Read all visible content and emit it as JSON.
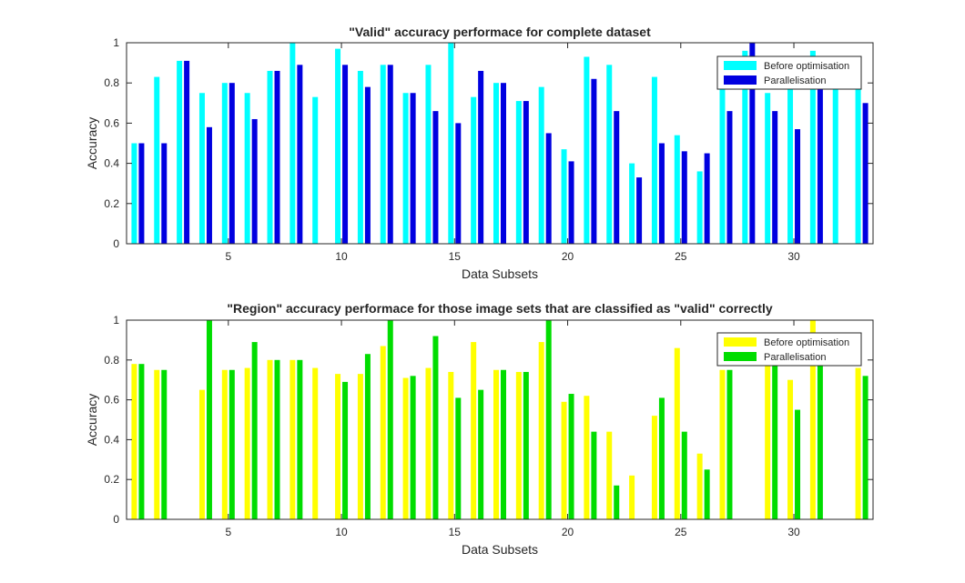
{
  "chart_data": [
    {
      "type": "bar",
      "title": "\"Valid\" accuracy performace for complete dataset",
      "xlabel": "Data Subsets",
      "ylabel": "Accuracy",
      "xlim": [
        0.5,
        33.5
      ],
      "ylim": [
        0,
        1
      ],
      "xticks": [
        5,
        10,
        15,
        20,
        25,
        30
      ],
      "yticks": [
        0,
        0.2,
        0.4,
        0.6,
        0.8,
        1
      ],
      "legend_position": "top-right",
      "categories": [
        1,
        2,
        3,
        4,
        5,
        6,
        7,
        8,
        9,
        10,
        11,
        12,
        13,
        14,
        15,
        16,
        17,
        18,
        19,
        20,
        21,
        22,
        23,
        24,
        25,
        26,
        27,
        28,
        29,
        30,
        31,
        32,
        33
      ],
      "series": [
        {
          "name": "Before optimisation",
          "color": "#00ffff",
          "values": [
            0.5,
            0.83,
            0.91,
            0.75,
            0.8,
            0.75,
            0.86,
            1.0,
            0.73,
            0.97,
            0.86,
            0.89,
            0.75,
            0.89,
            1.0,
            0.73,
            0.8,
            0.71,
            0.78,
            0.47,
            0.93,
            0.89,
            0.4,
            0.83,
            0.54,
            0.36,
            0.78,
            0.96,
            0.75,
            0.78,
            0.96,
            0.8,
            0.8
          ]
        },
        {
          "name": "Parallelisation",
          "color": "#0000e0",
          "values": [
            0.5,
            0.5,
            0.91,
            0.58,
            0.8,
            0.62,
            0.86,
            0.89,
            0.0,
            0.89,
            0.78,
            0.89,
            0.75,
            0.66,
            0.6,
            0.86,
            0.8,
            0.71,
            0.55,
            0.41,
            0.82,
            0.66,
            0.33,
            0.5,
            0.46,
            0.45,
            0.66,
            1.0,
            0.66,
            0.57,
            0.85,
            0.0,
            0.7
          ]
        }
      ]
    },
    {
      "type": "bar",
      "title": "\"Region\" accuracy performace for those image sets that are classified as \"valid\" correctly",
      "xlabel": "Data Subsets",
      "ylabel": "Accuracy",
      "xlim": [
        0.5,
        33.5
      ],
      "ylim": [
        0,
        1
      ],
      "xticks": [
        5,
        10,
        15,
        20,
        25,
        30
      ],
      "yticks": [
        0,
        0.2,
        0.4,
        0.6,
        0.8,
        1
      ],
      "legend_position": "top-right",
      "categories": [
        1,
        2,
        3,
        4,
        5,
        6,
        7,
        8,
        9,
        10,
        11,
        12,
        13,
        14,
        15,
        16,
        17,
        18,
        19,
        20,
        21,
        22,
        23,
        24,
        25,
        26,
        27,
        28,
        29,
        30,
        31,
        32,
        33
      ],
      "series": [
        {
          "name": "Before optimisation",
          "color": "#ffff00",
          "values": [
            0.78,
            0.75,
            0.0,
            0.65,
            0.75,
            0.76,
            0.8,
            0.8,
            0.76,
            0.73,
            0.73,
            0.87,
            0.71,
            0.76,
            0.74,
            0.89,
            0.75,
            0.74,
            0.89,
            0.59,
            0.62,
            0.44,
            0.22,
            0.52,
            0.86,
            0.33,
            0.75,
            0.0,
            0.8,
            0.7,
            1.0,
            0.0,
            0.76
          ]
        },
        {
          "name": "Parallelisation",
          "color": "#00dd00",
          "values": [
            0.78,
            0.75,
            0.0,
            1.0,
            0.75,
            0.89,
            0.8,
            0.8,
            0.0,
            0.69,
            0.83,
            1.0,
            0.72,
            0.92,
            0.61,
            0.65,
            0.75,
            0.74,
            1.0,
            0.63,
            0.44,
            0.17,
            0.0,
            0.61,
            0.44,
            0.25,
            0.75,
            0.0,
            0.85,
            0.55,
            0.85,
            0.0,
            0.72
          ]
        }
      ]
    }
  ]
}
